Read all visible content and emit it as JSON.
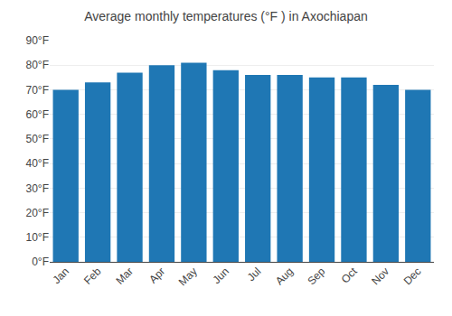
{
  "chart_data": {
    "type": "bar",
    "title": "Average monthly temperatures (°F ) in Axochiapan",
    "categories": [
      "Jan",
      "Feb",
      "Mar",
      "Apr",
      "May",
      "Jun",
      "Jul",
      "Aug",
      "Sep",
      "Oct",
      "Nov",
      "Dec"
    ],
    "values": [
      70,
      73,
      77,
      80,
      81,
      78,
      76,
      76,
      75,
      75,
      72,
      70
    ],
    "ylim": [
      0,
      90
    ],
    "yticks": [
      {
        "value": 0,
        "label": "0°F"
      },
      {
        "value": 10,
        "label": "10°F"
      },
      {
        "value": 20,
        "label": "20°F"
      },
      {
        "value": 30,
        "label": "30°F"
      },
      {
        "value": 40,
        "label": "40°F"
      },
      {
        "value": 50,
        "label": "50°F"
      },
      {
        "value": 60,
        "label": "60°F"
      },
      {
        "value": 70,
        "label": "70°F"
      },
      {
        "value": 80,
        "label": "80°F"
      },
      {
        "value": 90,
        "label": "90°F"
      }
    ],
    "grid": true
  }
}
